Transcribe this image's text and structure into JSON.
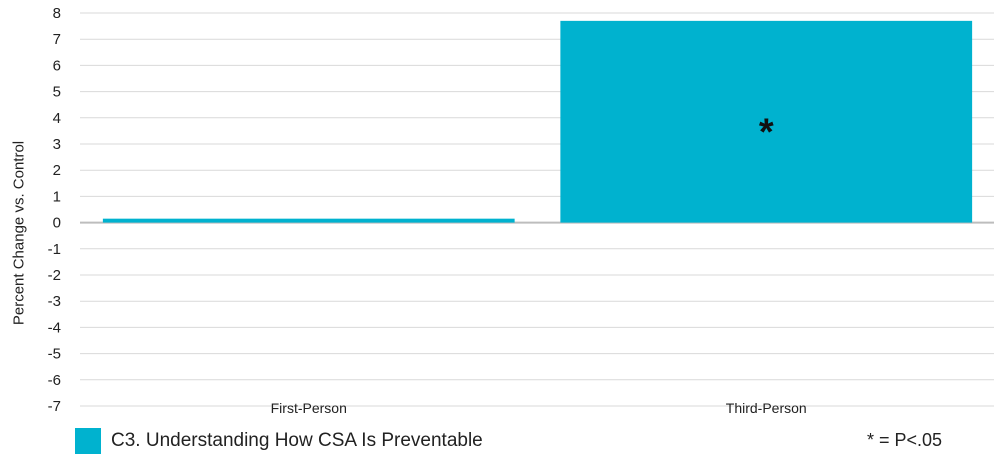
{
  "chart_data": {
    "type": "bar",
    "categories": [
      "First-Person",
      "Third-Person"
    ],
    "series": [
      {
        "name": "C3. Understanding How CSA Is Preventable",
        "values": [
          0.15,
          7.7
        ],
        "color": "#00B2CF"
      }
    ],
    "annotations": [
      "",
      "*"
    ],
    "ylabel": "Percent Change vs. Control",
    "ylim": [
      -7,
      8
    ],
    "yticks": [
      8,
      7,
      6,
      5,
      4,
      3,
      2,
      1,
      0,
      -1,
      -2,
      -3,
      -4,
      -5,
      -6,
      -7
    ],
    "grid": true,
    "legend_position": "bottom-left",
    "footnote": "* = P<.05"
  }
}
